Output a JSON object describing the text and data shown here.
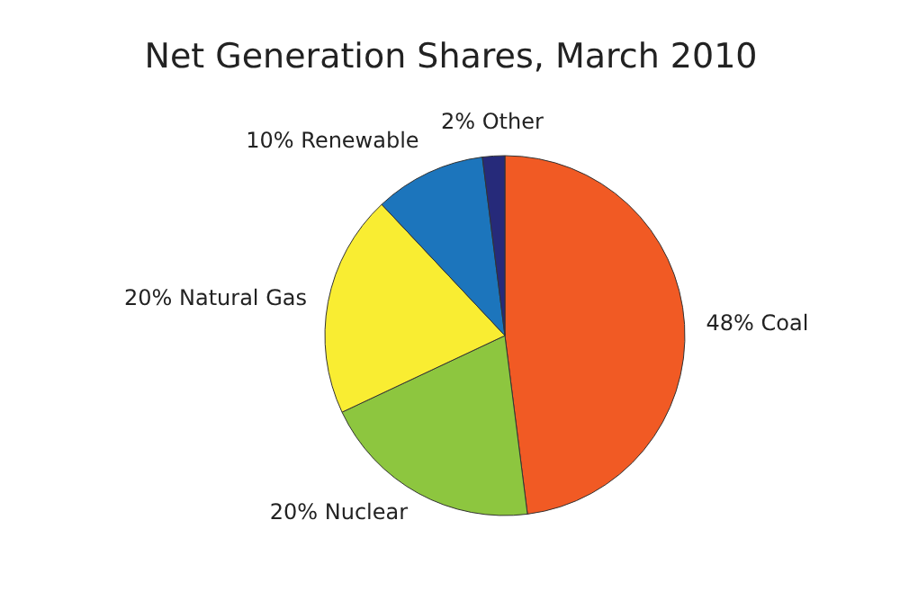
{
  "chart_data": {
    "type": "pie",
    "title": "Net Generation Shares, March 2010",
    "categories": [
      "48% Coal",
      "20% Nuclear",
      "20% Natural Gas",
      "10% Renewable",
      "2% Other"
    ],
    "values": [
      48,
      20,
      20,
      10,
      2
    ],
    "colors": [
      "#f15a24",
      "#8dc63f",
      "#f9ed32",
      "#1c75bc",
      "#262a7a"
    ]
  }
}
